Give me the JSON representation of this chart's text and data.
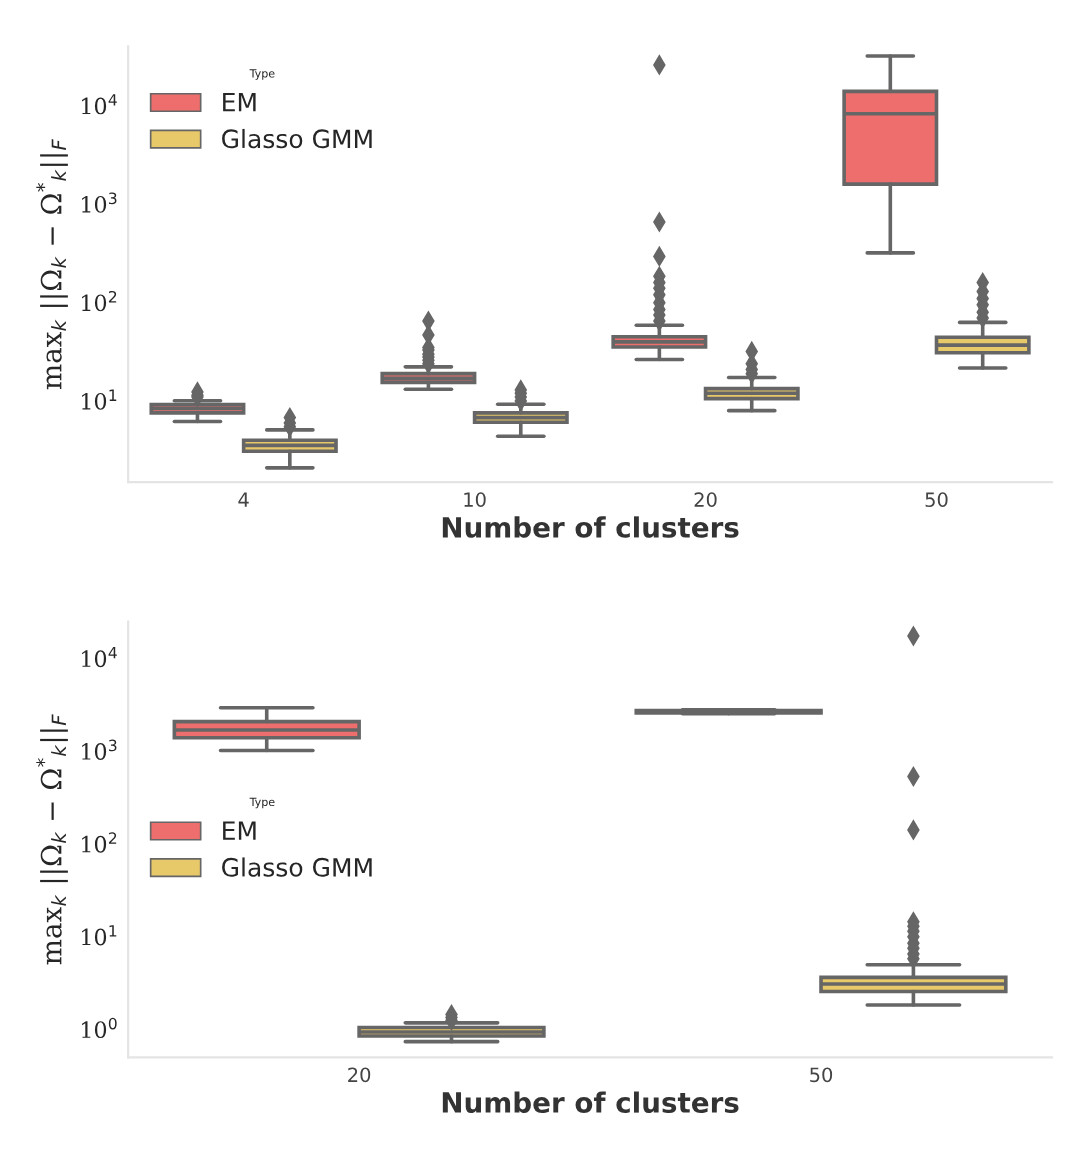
{
  "chart_data": [
    {
      "type": "box",
      "categories": [
        "4",
        "10",
        "20",
        "50"
      ],
      "xlabel": "Number of clusters",
      "ylabel": "max$_{k}$ ||Ω$_{k}$ − Ω$^{*}$$_{k}$||$_{F}$",
      "legend_title": "Type",
      "legend": "top left",
      "log": true,
      "grid": false,
      "ylim": [
        1.5,
        40000
      ],
      "yticks": [
        {
          "value": 10,
          "label": "10$^{1}$"
        },
        {
          "value": 100,
          "label": "10$^{2}$"
        },
        {
          "value": 1000,
          "label": "10$^{3}$"
        },
        {
          "value": 10000,
          "label": "10$^{4}$"
        }
      ],
      "series": [
        {
          "name": "EM",
          "color": "#ee6e6e",
          "boxes": [
            {
              "low": 6.2,
              "q1": 7.6,
              "median": 8.4,
              "q3": 9.2,
              "high": 10.1,
              "outliers": [
                11,
                11.5,
                12.4
              ]
            },
            {
              "low": 13.2,
              "q1": 15.5,
              "median": 17,
              "q3": 19,
              "high": 22.3,
              "outliers": [
                24,
                26,
                28,
                30,
                33,
                35,
                47,
                65
              ]
            },
            {
              "low": 26.5,
              "q1": 35.5,
              "median": 40,
              "q3": 45,
              "high": 59,
              "outliers": [
                65,
                75,
                85,
                100,
                120,
                140,
                160,
                185,
                295,
                660,
                26000
              ]
            },
            {
              "low": 320,
              "q1": 1600,
              "median": 8300,
              "q3": 14000,
              "high": 32000
            }
          ]
        },
        {
          "name": "Glasso GMM",
          "color": "#e8c96a",
          "boxes": [
            {
              "low": 2.1,
              "q1": 3.1,
              "median": 3.55,
              "q3": 4.0,
              "high": 5.1,
              "outliers": [
                5.5,
                6,
                6.8
              ]
            },
            {
              "low": 4.4,
              "q1": 6.1,
              "median": 6.8,
              "q3": 7.6,
              "high": 9.3,
              "outliers": [
                10,
                11,
                12,
                13
              ]
            },
            {
              "low": 8,
              "q1": 10.6,
              "median": 12,
              "q3": 13.4,
              "high": 17.4,
              "outliers": [
                19,
                21,
                24,
                32
              ]
            },
            {
              "low": 21.7,
              "q1": 31,
              "median": 37,
              "q3": 44.5,
              "high": 63,
              "outliers": [
                70,
                80,
                95,
                110,
                130,
                160
              ]
            }
          ]
        }
      ]
    },
    {
      "type": "box",
      "categories": [
        "20",
        "50"
      ],
      "xlabel": "Number of clusters",
      "ylabel": "max$_{k}$ ||Ω$_{k}$ − Ω$^{*}$$_{k}$||$_{F}$",
      "legend_title": "Type",
      "legend": "left",
      "log": true,
      "grid": false,
      "ylim": [
        0.5,
        25000
      ],
      "yticks": [
        {
          "value": 1,
          "label": "10$^{0}$"
        },
        {
          "value": 10,
          "label": "10$^{1}$"
        },
        {
          "value": 100,
          "label": "10$^{2}$"
        },
        {
          "value": 1000,
          "label": "10$^{3}$"
        },
        {
          "value": 10000,
          "label": "10$^{4}$"
        }
      ],
      "series": [
        {
          "name": "EM",
          "color": "#ee6e6e",
          "boxes": [
            {
              "low": 1020,
              "q1": 1400,
              "median": 1700,
              "q3": 2090,
              "high": 2950
            },
            {
              "low": 2550,
              "q1": 2600,
              "median": 2700,
              "q3": 2750,
              "high": 2800
            }
          ]
        },
        {
          "name": "Glasso GMM",
          "color": "#e8c96a",
          "boxes": [
            {
              "low": 0.74,
              "q1": 0.85,
              "median": 0.94,
              "q3": 1.05,
              "high": 1.18,
              "outliers": [
                1.25,
                1.35,
                1.45
              ]
            },
            {
              "low": 1.84,
              "q1": 2.57,
              "median": 3.1,
              "q3": 3.65,
              "high": 5.0,
              "outliers": [
                5.8,
                6.5,
                7.5,
                8.5,
                10,
                11.5,
                13,
                14.5,
                142,
                535,
                17500
              ]
            }
          ]
        }
      ]
    }
  ]
}
